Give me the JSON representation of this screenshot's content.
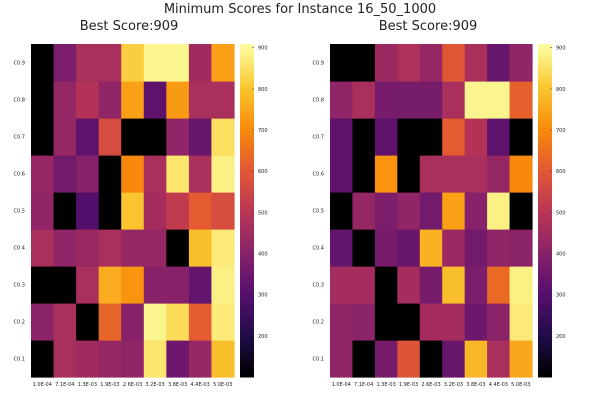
{
  "chart_data": {
    "type": "heatmap",
    "title": "Minimum Scores for Instance 16_50_1000",
    "colormap": "inferno",
    "panels": [
      {
        "title": "Best Score:909",
        "x_labels": [
          "1.0E-04",
          "7.1E-04",
          "1.3E-03",
          "1.9E-03",
          "2.6E-03",
          "3.2E-03",
          "3.8E-03",
          "4.4E-03",
          "5.0E-03"
        ],
        "y_labels": [
          "C0.1",
          "C0.2",
          "C0.3",
          "C0.4",
          "C0.5",
          "C0.6",
          "C0.7",
          "C0.8",
          "C0.9"
        ],
        "zlim": [
          100,
          909
        ],
        "colorbar_ticks": [
          200,
          300,
          400,
          500,
          600,
          700,
          800,
          900
        ],
        "values": [
          [
            100,
            470,
            450,
            430,
            420,
            860,
            350,
            430,
            790
          ],
          [
            410,
            470,
            100,
            630,
            400,
            890,
            840,
            610,
            870
          ],
          [
            100,
            100,
            470,
            760,
            720,
            400,
            400,
            330,
            880
          ],
          [
            470,
            420,
            440,
            470,
            430,
            430,
            100,
            790,
            870
          ],
          [
            420,
            100,
            300,
            100,
            800,
            460,
            520,
            610,
            570
          ],
          [
            430,
            360,
            400,
            100,
            700,
            470,
            860,
            470,
            880
          ],
          [
            100,
            430,
            320,
            570,
            100,
            100,
            420,
            340,
            850
          ],
          [
            100,
            430,
            490,
            420,
            740,
            320,
            730,
            470,
            470
          ],
          [
            100,
            380,
            470,
            470,
            820,
            890,
            890,
            450,
            740
          ]
        ]
      },
      {
        "title": "Best Score:909",
        "x_labels": [
          "1.0E-04",
          "7.1E-04",
          "1.3E-03",
          "1.9E-03",
          "2.6E-03",
          "3.2E-03",
          "3.8E-03",
          "4.4E-03",
          "5.0E-03"
        ],
        "y_labels": [
          "C0.1",
          "C0.2",
          "C0.3",
          "C0.4",
          "C0.5",
          "C0.6",
          "C0.7",
          "C0.8",
          "C0.9"
        ],
        "zlim": [
          100,
          909
        ],
        "colorbar_ticks": [
          200,
          300,
          400,
          500,
          600,
          700,
          800,
          900
        ],
        "values": [
          [
            420,
            100,
            370,
            590,
            100,
            340,
            780,
            470,
            750
          ],
          [
            420,
            410,
            100,
            100,
            460,
            460,
            350,
            410,
            870
          ],
          [
            460,
            460,
            100,
            460,
            370,
            790,
            380,
            640,
            880
          ],
          [
            330,
            100,
            370,
            340,
            770,
            440,
            360,
            420,
            410
          ],
          [
            100,
            430,
            380,
            420,
            360,
            740,
            400,
            880,
            100
          ],
          [
            320,
            100,
            720,
            100,
            470,
            470,
            470,
            430,
            700
          ],
          [
            320,
            100,
            320,
            100,
            100,
            610,
            490,
            320,
            100
          ],
          [
            420,
            470,
            370,
            370,
            370,
            470,
            890,
            890,
            620
          ],
          [
            100,
            100,
            440,
            480,
            430,
            600,
            470,
            340,
            420
          ]
        ]
      }
    ]
  }
}
